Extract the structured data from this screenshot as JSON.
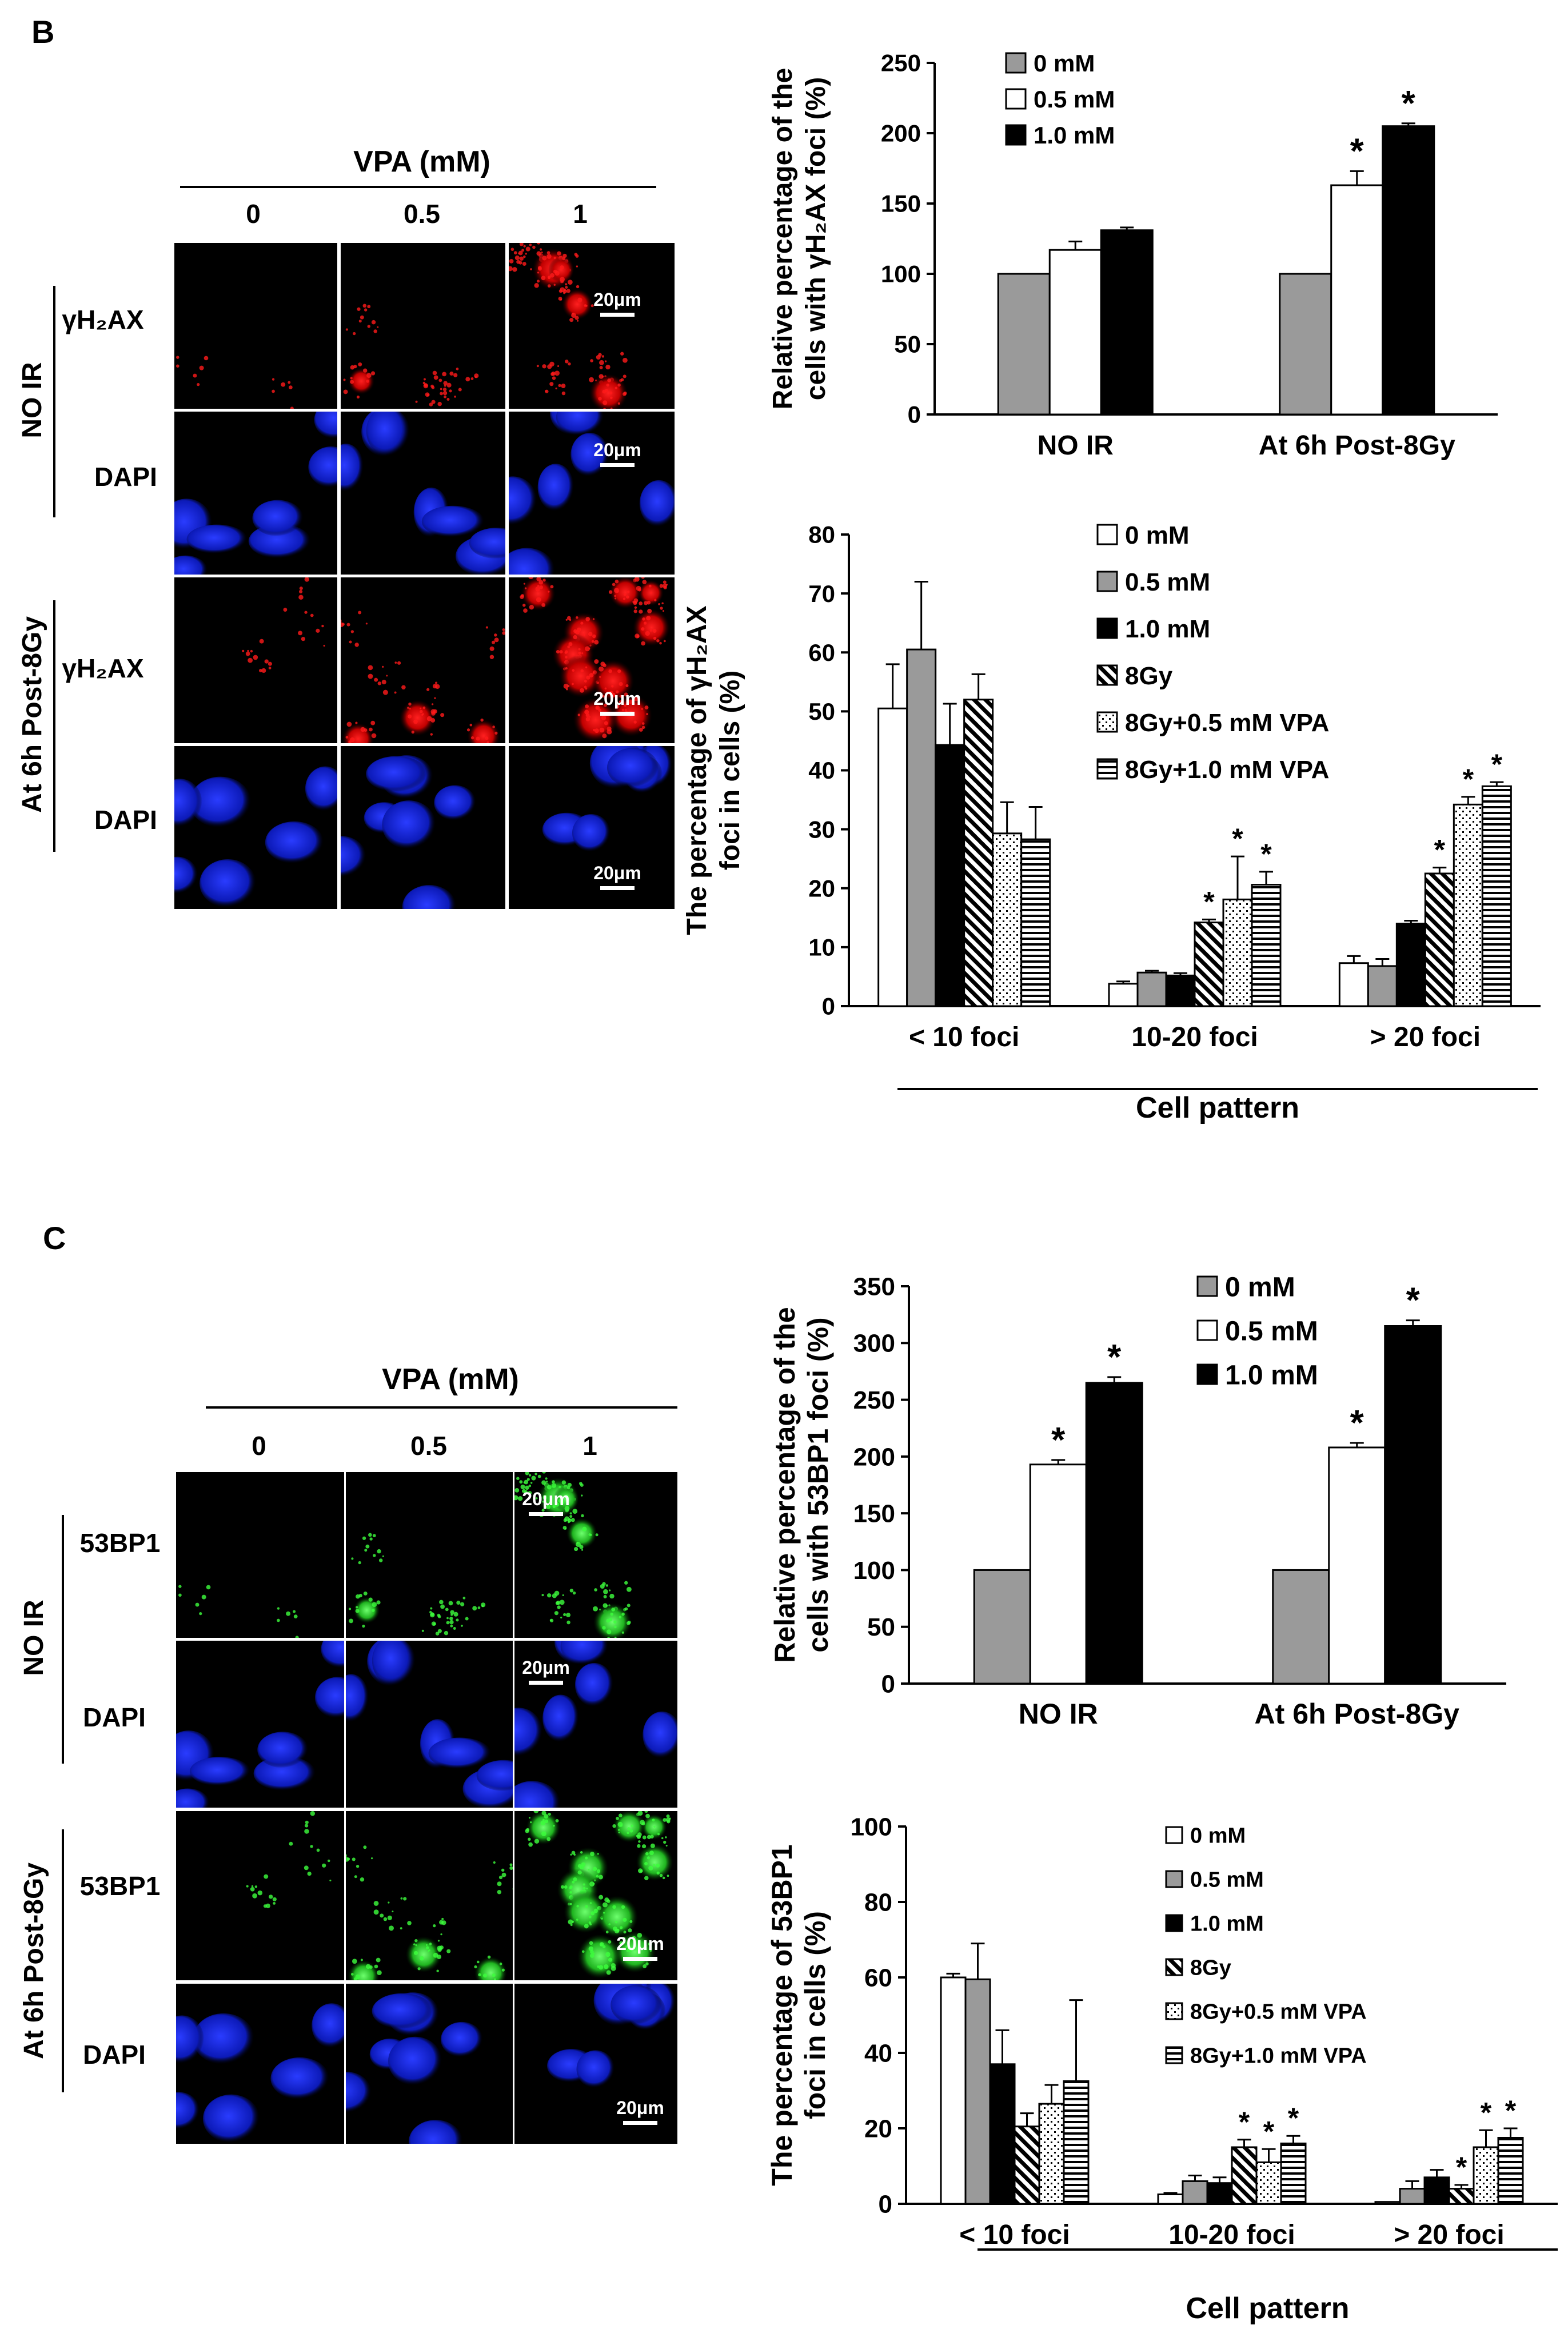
{
  "panels": {
    "B": {
      "letter": "B",
      "micro": {
        "header": "VPA (mM)",
        "cols": [
          "0",
          "0.5",
          "1"
        ],
        "groups": [
          "NO IR",
          "At 6h Post-8Gy"
        ],
        "rows": [
          "γH₂AX",
          "DAPI",
          "γH₂AX",
          "DAPI"
        ],
        "scalebar": "20μm"
      }
    },
    "C": {
      "letter": "C",
      "micro": {
        "header": "VPA (mM)",
        "cols": [
          "0",
          "0.5",
          "1"
        ],
        "groups": [
          "NO IR",
          "At 6h Post-8Gy"
        ],
        "rows": [
          "53BP1",
          "DAPI",
          "53BP1",
          "DAPI"
        ],
        "scalebar": "20μm"
      }
    }
  },
  "chart_data": [
    {
      "id": "B-top",
      "type": "bar",
      "ylabel_lines": [
        "Relative percentage of the",
        "cells with γH₂AX foci (%)"
      ],
      "categories": [
        "NO IR",
        "At 6h Post-8Gy"
      ],
      "ylim": [
        0,
        250
      ],
      "yticks": [
        0,
        50,
        100,
        150,
        200,
        250
      ],
      "legend_position": "top-left",
      "series": [
        {
          "name": "0 mM",
          "values": [
            100,
            100
          ],
          "err": [
            0,
            0
          ],
          "star": [
            false,
            false
          ],
          "fill": "gray"
        },
        {
          "name": "0.5 mM",
          "values": [
            117,
            163
          ],
          "err": [
            6,
            10
          ],
          "star": [
            false,
            true
          ],
          "fill": "white"
        },
        {
          "name": "1.0 mM",
          "values": [
            131,
            205
          ],
          "err": [
            2,
            2
          ],
          "star": [
            false,
            true
          ],
          "fill": "black"
        }
      ]
    },
    {
      "id": "B-bottom",
      "type": "bar",
      "ylabel_lines": [
        "The percentage of γH₂AX",
        "foci in cells (%)"
      ],
      "xlabel": "Cell pattern",
      "categories": [
        "< 10 foci",
        "10-20 foci",
        "> 20 foci"
      ],
      "ylim": [
        0,
        80
      ],
      "yticks": [
        0,
        10,
        20,
        30,
        40,
        50,
        60,
        70,
        80
      ],
      "legend_position": "top-right",
      "series": [
        {
          "name": "0 mM",
          "values": [
            50.5,
            3.8,
            7.3
          ],
          "err": [
            7.5,
            0.4,
            1.2
          ],
          "star": [
            false,
            false,
            false
          ],
          "fill": "white"
        },
        {
          "name": "0.5 mM",
          "values": [
            60.5,
            5.7,
            6.8
          ],
          "err": [
            11.5,
            0.3,
            1.2
          ],
          "star": [
            false,
            false,
            false
          ],
          "fill": "gray"
        },
        {
          "name": "1.0 mM",
          "values": [
            44.3,
            5.2,
            14.0
          ],
          "err": [
            7,
            0.4,
            0.5
          ],
          "star": [
            false,
            false,
            false
          ],
          "fill": "black"
        },
        {
          "name": "8Gy",
          "values": [
            52,
            14.2,
            22.5
          ],
          "err": [
            4.3,
            0.5,
            1
          ],
          "star": [
            false,
            true,
            true
          ],
          "fill": "diag"
        },
        {
          "name": "8Gy+0.5 mM VPA",
          "values": [
            29.3,
            18.1,
            34.2
          ],
          "err": [
            5.3,
            7.3,
            1.3
          ],
          "star": [
            false,
            true,
            true
          ],
          "fill": "dots"
        },
        {
          "name": "8Gy+1.0 mM VPA",
          "values": [
            28.3,
            20.6,
            37.3
          ],
          "err": [
            5.5,
            2.2,
            0.7
          ],
          "star": [
            false,
            true,
            true
          ],
          "fill": "hlines"
        }
      ]
    },
    {
      "id": "C-top",
      "type": "bar",
      "ylabel_lines": [
        "Relative percentage of the",
        "cells with 53BP1 foci (%)"
      ],
      "categories": [
        "NO IR",
        "At 6h Post-8Gy"
      ],
      "ylim": [
        0,
        350
      ],
      "yticks": [
        0,
        50,
        100,
        150,
        200,
        250,
        300,
        350
      ],
      "legend_position": "top-right",
      "series": [
        {
          "name": "0 mM",
          "values": [
            100,
            100
          ],
          "err": [
            0,
            0
          ],
          "star": [
            false,
            false
          ],
          "fill": "gray"
        },
        {
          "name": "0.5 mM",
          "values": [
            193,
            208
          ],
          "err": [
            4,
            4
          ],
          "star": [
            true,
            true
          ],
          "fill": "white"
        },
        {
          "name": "1.0 mM",
          "values": [
            265,
            315
          ],
          "err": [
            5,
            5
          ],
          "star": [
            true,
            true
          ],
          "fill": "black"
        }
      ]
    },
    {
      "id": "C-bottom",
      "type": "bar",
      "ylabel_lines": [
        "The percentage of 53BP1",
        "foci in cells (%)"
      ],
      "xlabel": "Cell pattern",
      "categories": [
        "< 10 foci",
        "10-20 foci",
        "> 20 foci"
      ],
      "ylim": [
        0,
        100
      ],
      "yticks": [
        0,
        20,
        40,
        60,
        80,
        100
      ],
      "legend_position": "top-right",
      "series": [
        {
          "name": "0 mM",
          "values": [
            60,
            2.5,
            0.5
          ],
          "err": [
            1,
            0.4,
            0
          ],
          "star": [
            false,
            false,
            false
          ],
          "fill": "white"
        },
        {
          "name": "0.5 mM",
          "values": [
            59.5,
            6,
            4
          ],
          "err": [
            9.5,
            1.5,
            2
          ],
          "star": [
            false,
            false,
            false
          ],
          "fill": "gray"
        },
        {
          "name": "1.0 mM",
          "values": [
            37,
            5.5,
            7
          ],
          "err": [
            9,
            1.5,
            2
          ],
          "star": [
            false,
            false,
            false
          ],
          "fill": "black"
        },
        {
          "name": "8Gy",
          "values": [
            20.5,
            15,
            4
          ],
          "err": [
            3.5,
            2,
            1
          ],
          "star": [
            false,
            true,
            true
          ],
          "fill": "diag"
        },
        {
          "name": "8Gy+0.5 mM VPA",
          "values": [
            26.5,
            11,
            15
          ],
          "err": [
            5,
            3.5,
            4.5
          ],
          "star": [
            false,
            true,
            true
          ],
          "fill": "dots"
        },
        {
          "name": "8Gy+1.0 mM VPA",
          "values": [
            32.5,
            16,
            17.5
          ],
          "err": [
            21.5,
            2,
            2.5
          ],
          "star": [
            false,
            true,
            true
          ],
          "fill": "hlines"
        }
      ]
    }
  ]
}
